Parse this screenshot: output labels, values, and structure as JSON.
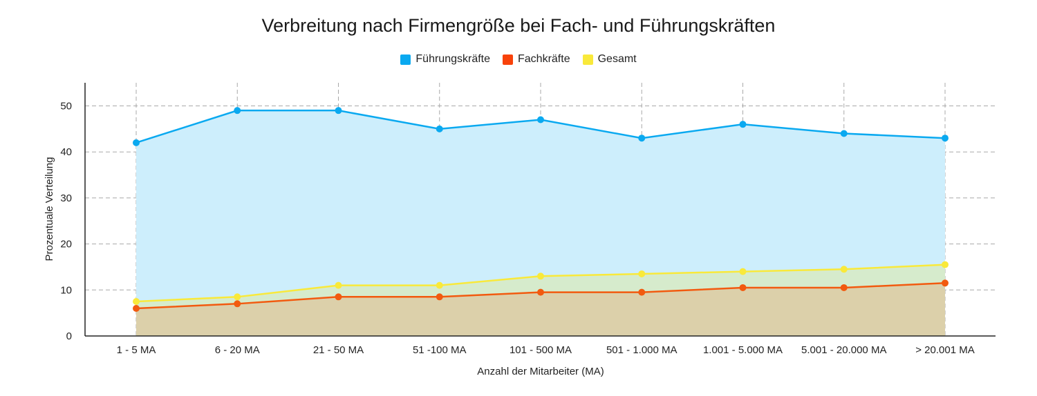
{
  "chart_data": {
    "type": "area",
    "title": "Verbreitung nach Firmengröße bei Fach- und Führungskräften",
    "xlabel": "Anzahl der Mitarbeiter (MA)",
    "ylabel": "Prozentuale Verteilung",
    "ylim": [
      0,
      55
    ],
    "yticks": [
      0,
      10,
      20,
      30,
      40,
      50
    ],
    "grid": true,
    "legend_position": "top-center",
    "categories": [
      "1 - 5 MA",
      "6 - 20 MA",
      "21 - 50 MA",
      "51 -100 MA",
      "101 - 500 MA",
      "501 - 1.000 MA",
      "1.001 - 5.000 MA",
      "5.001 - 20.000 MA",
      "> 20.001 MA"
    ],
    "series": [
      {
        "name": "Führungskräfte",
        "color": "#0aa9f0",
        "fill": "#cdeefc",
        "values": [
          42,
          49,
          49,
          45,
          47,
          43,
          46,
          44,
          43
        ]
      },
      {
        "name": "Gesamt",
        "color": "#f9e93a",
        "fill": "#d6ebcc",
        "values": [
          7.5,
          8.5,
          11,
          11,
          13,
          13.5,
          14,
          14.5,
          15.5
        ]
      },
      {
        "name": "Fachkräfte",
        "color": "#f25a0f",
        "fill": "#dcd0aa",
        "values": [
          6,
          7,
          8.5,
          8.5,
          9.5,
          9.5,
          10.5,
          10.5,
          11.5
        ]
      }
    ],
    "legend_order": [
      "Führungskräfte",
      "Fachkräfte",
      "Gesamt"
    ]
  }
}
